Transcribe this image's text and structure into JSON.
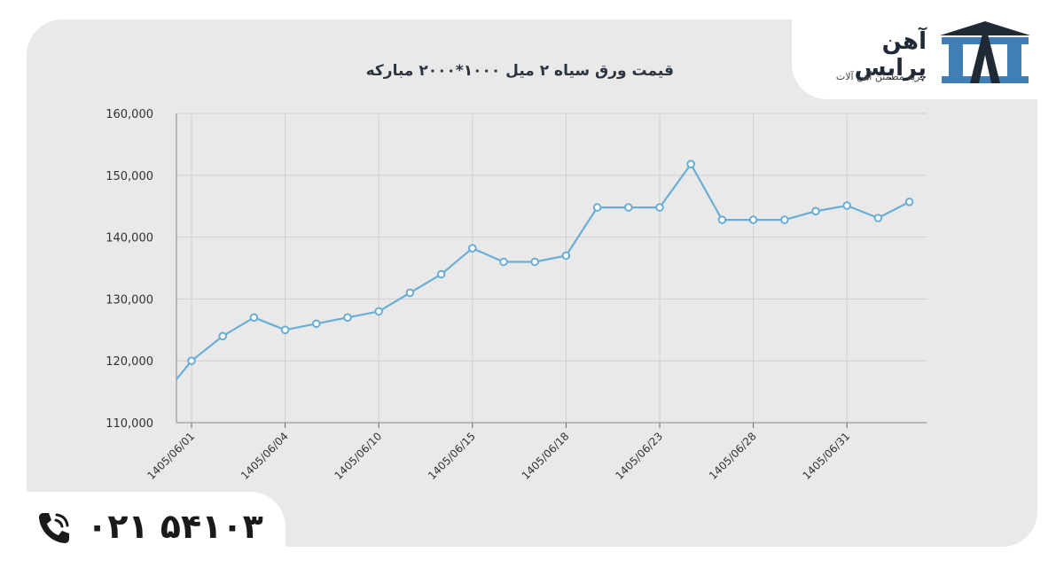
{
  "brand": {
    "name": "آهن پرایس",
    "tagline": "خرید مطمئن آهن آلات"
  },
  "contact": {
    "phone": "۰۲۱ ۵۴۱۰۳"
  },
  "colors": {
    "line": "#6aaed6",
    "card": "#e9e9e9",
    "grid": "#cfcfcf",
    "logo_accent": "#3f7fb5"
  },
  "chart_data": {
    "type": "line",
    "title": "قیمت ورق سیاه ۲ میل ۱۰۰۰*۲۰۰۰ مبارکه",
    "xlabel": "",
    "ylabel": "",
    "ylim": [
      110000,
      160000
    ],
    "yticks": [
      "110,000",
      "120,000",
      "130,000",
      "140,000",
      "150,000",
      "160,000"
    ],
    "ytick_values": [
      110000,
      120000,
      130000,
      140000,
      150000,
      160000
    ],
    "xtick_labels": [
      "1405/06/01",
      "1405/06/04",
      "1405/06/10",
      "1405/06/15",
      "1405/06/18",
      "1405/06/23",
      "1405/06/28",
      "1405/06/31"
    ],
    "xtick_indices": [
      0,
      3,
      6,
      9,
      12,
      15,
      18,
      21
    ],
    "grid": true,
    "legend": "none",
    "series": [
      {
        "values": [
          120000,
          124000,
          127000,
          125000,
          126000,
          127000,
          128000,
          131000,
          134000,
          138200,
          136000,
          136000,
          137000,
          144800,
          144800,
          144800,
          151800,
          142800,
          142800,
          142800,
          144200,
          145100,
          143100,
          145700
        ]
      }
    ]
  }
}
